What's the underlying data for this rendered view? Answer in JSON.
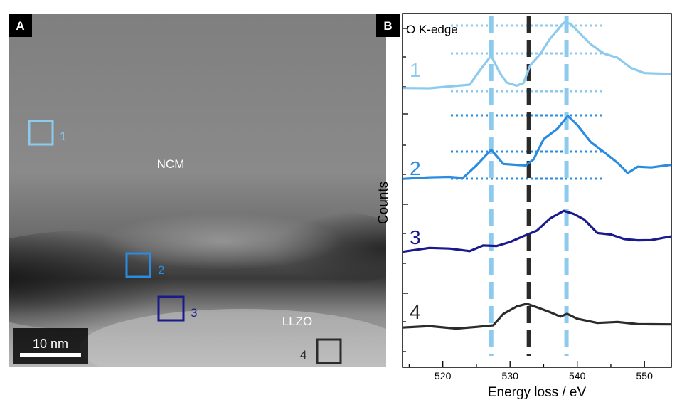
{
  "panel_a": {
    "label": "A",
    "region_labels": {
      "ncm": "NCM",
      "llzo": "LLZO"
    },
    "scale_bar": "10 nm",
    "boxes": [
      {
        "id": "1",
        "label": "1",
        "color": "#8ccaee"
      },
      {
        "id": "2",
        "label": "2",
        "color": "#2a8ce0"
      },
      {
        "id": "3",
        "label": "3",
        "color": "#1a1a8c"
      },
      {
        "id": "4",
        "label": "4",
        "color": "#2b2b2b"
      }
    ]
  },
  "panel_b": {
    "label": "B",
    "annotation": "O K-edge"
  },
  "chart_data": {
    "type": "line",
    "title": "",
    "xlabel": "Energy loss / eV",
    "ylabel": "Counts",
    "xlim": [
      514,
      554
    ],
    "xticks": [
      520,
      530,
      540,
      550
    ],
    "y_ticks_shown": false,
    "vertical_markers": [
      {
        "x": 527.2,
        "style": "dashed",
        "color": "#8ccaee"
      },
      {
        "x": 532.8,
        "style": "dashed",
        "color": "#2a2a2a"
      },
      {
        "x": 538.4,
        "style": "dashed",
        "color": "#8ccaee"
      }
    ],
    "series": [
      {
        "name": "1",
        "color": "#8ccaee",
        "x": [
          514,
          518,
          522,
          524,
          525.5,
          527.2,
          528.5,
          529.5,
          531,
          532,
          533,
          534.5,
          536,
          538,
          539,
          540.5,
          542,
          544,
          546,
          548,
          550,
          552,
          554
        ],
        "y": [
          0.05,
          0.08,
          0.07,
          0.18,
          0.6,
          1.0,
          0.55,
          0.2,
          0.1,
          0.25,
          0.7,
          1.1,
          1.6,
          2.0,
          2.05,
          1.7,
          1.35,
          1.15,
          0.95,
          0.65,
          0.55,
          0.45,
          0.5
        ]
      },
      {
        "name": "2",
        "color": "#2a8ce0",
        "x": [
          514,
          518,
          521,
          523,
          525,
          527.2,
          529,
          531,
          532.3,
          533.5,
          535,
          537,
          538.6,
          540,
          542,
          544,
          546,
          547.5,
          549,
          551,
          554
        ],
        "y": [
          0.05,
          0.05,
          0.04,
          0.08,
          0.35,
          0.8,
          0.45,
          0.35,
          0.4,
          0.55,
          1.05,
          1.4,
          1.7,
          1.45,
          1.05,
          0.7,
          0.45,
          0.2,
          0.3,
          0.35,
          0.4
        ]
      },
      {
        "name": "3",
        "color": "#1a1a8c",
        "x": [
          514,
          518,
          521,
          524,
          526,
          528,
          530,
          532,
          534,
          536,
          538,
          539.5,
          541,
          543,
          545,
          547,
          549,
          551,
          554
        ],
        "y": [
          0.05,
          0.08,
          0.12,
          0.05,
          0.15,
          0.22,
          0.3,
          0.45,
          0.7,
          1.0,
          1.25,
          1.2,
          0.95,
          0.6,
          0.55,
          0.35,
          0.4,
          0.35,
          0.45
        ]
      },
      {
        "name": "4",
        "color": "#2b2b2b",
        "x": [
          514,
          518,
          522,
          525,
          527.5,
          529,
          531,
          532.5,
          534,
          536,
          537.5,
          538.5,
          540,
          543,
          546,
          549,
          551,
          554
        ],
        "y": [
          0.05,
          0.05,
          0.06,
          0.04,
          0.1,
          0.55,
          0.7,
          0.85,
          0.75,
          0.5,
          0.45,
          0.5,
          0.3,
          0.25,
          0.2,
          0.15,
          0.2,
          0.1
        ]
      }
    ]
  }
}
